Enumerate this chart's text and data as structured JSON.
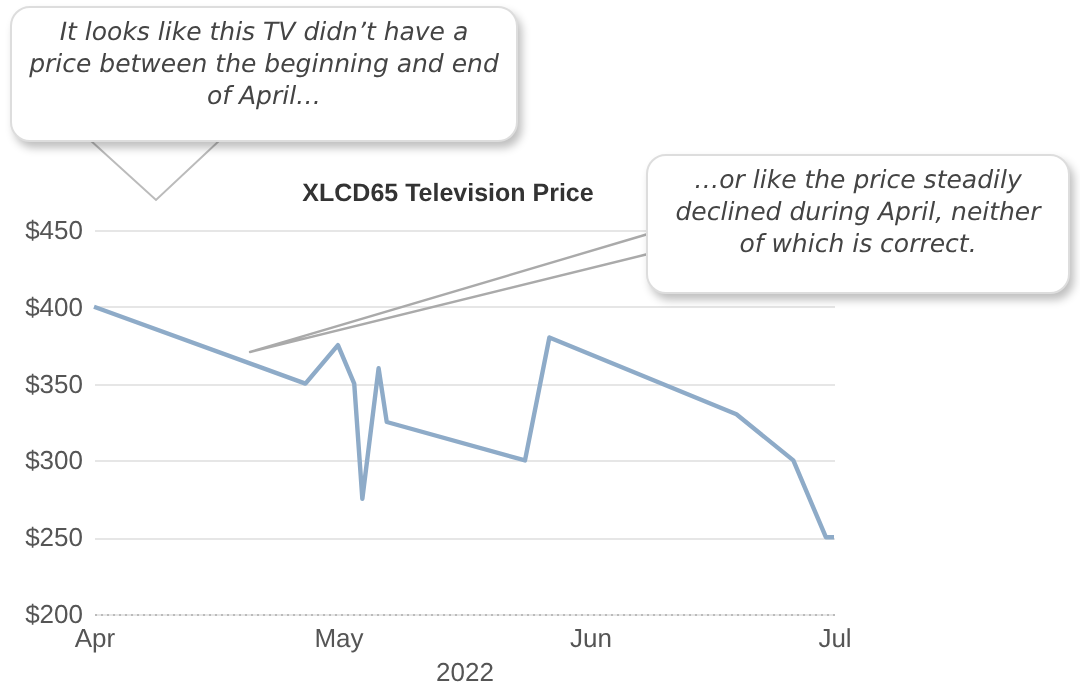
{
  "chart_data": {
    "type": "line",
    "title": "XLCD65 Television Price",
    "xlabel": "2022",
    "x": [
      "2022-04-01",
      "2022-04-27",
      "2022-05-01",
      "2022-05-03",
      "2022-05-04",
      "2022-05-06",
      "2022-05-07",
      "2022-05-24",
      "2022-05-27",
      "2022-06-19",
      "2022-06-26",
      "2022-06-30",
      "2022-07-01"
    ],
    "series": [
      {
        "color": "#8eabc8",
        "values": [
          400,
          350,
          375,
          350,
          275,
          360,
          325,
          300,
          380,
          330,
          300,
          250,
          250
        ]
      }
    ],
    "xlim": [
      "2022-04-01",
      "2022-07-01"
    ],
    "xticks": [
      {
        "value": "2022-04-01",
        "label": "Apr"
      },
      {
        "value": "2022-05-01",
        "label": "May"
      },
      {
        "value": "2022-06-01",
        "label": "Jun"
      },
      {
        "value": "2022-07-01",
        "label": "Jul"
      }
    ],
    "ylim": [
      200,
      450
    ],
    "yticks": [
      {
        "value": 200,
        "label": "$200"
      },
      {
        "value": 250,
        "label": "$250"
      },
      {
        "value": 300,
        "label": "$300"
      },
      {
        "value": 350,
        "label": "$350"
      },
      {
        "value": 400,
        "label": "$400"
      },
      {
        "value": 450,
        "label": "$450"
      }
    ],
    "grid": "y",
    "legend": false,
    "marker": "none",
    "line_style": "solid",
    "annotations": [
      "It looks like this TV didn’t have a price between the beginning and end of April…",
      "…or like the price steadily declined during April, neither of which is correct."
    ]
  }
}
